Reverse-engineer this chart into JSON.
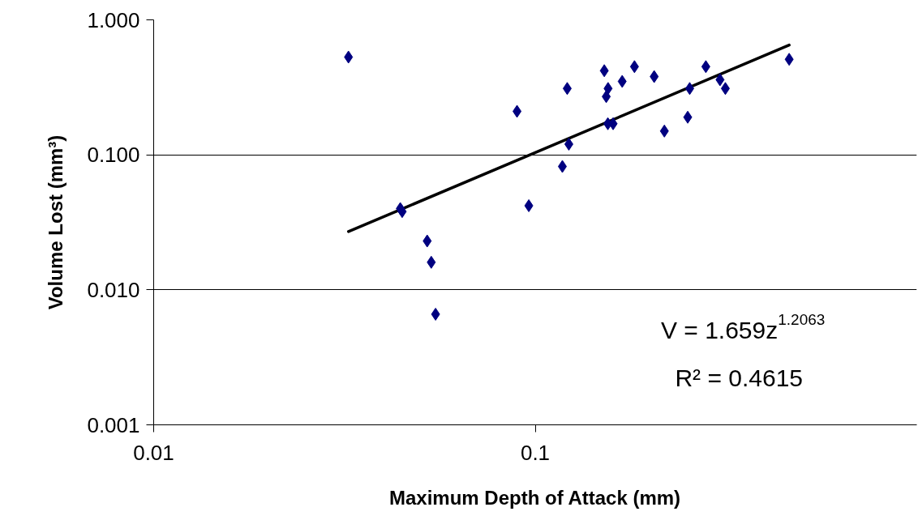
{
  "chart_data": {
    "type": "scatter",
    "xlabel": "Maximum Depth of Attack (mm)",
    "ylabel": "Volume Lost (mm³)",
    "log": "xy",
    "grid": "y",
    "marker": "diamond",
    "xlim": [
      0.01,
      1
    ],
    "xticks": [
      {
        "value": 0.01,
        "label": "0.01"
      },
      {
        "value": 0.1,
        "label": "0.1"
      }
    ],
    "ylim": [
      0.001,
      1
    ],
    "yticks": [
      {
        "value": 0.001,
        "label": "0.001"
      },
      {
        "value": 0.01,
        "label": "0.010"
      },
      {
        "value": 0.1,
        "label": "0.100"
      },
      {
        "value": 1,
        "label": "1.000"
      }
    ],
    "series": [
      {
        "color": "#000080",
        "x": [
          0.0324,
          0.0443,
          0.0448,
          0.0521,
          0.0534,
          0.0548,
          0.0896,
          0.0962,
          0.1178,
          0.1225,
          0.1213,
          0.1517,
          0.1552,
          0.1535,
          0.155,
          0.16,
          0.169,
          0.182,
          0.205,
          0.218,
          0.251,
          0.254,
          0.28,
          0.305,
          0.315,
          0.463
        ],
        "values": [
          0.53,
          0.04,
          0.038,
          0.023,
          0.016,
          0.0066,
          0.21,
          0.042,
          0.082,
          0.12,
          0.31,
          0.42,
          0.31,
          0.27,
          0.17,
          0.17,
          0.35,
          0.45,
          0.38,
          0.15,
          0.19,
          0.31,
          0.45,
          0.36,
          0.31,
          0.51
        ]
      },
      {
        "type": "line",
        "color": "#000000",
        "marker": "none",
        "x": [
          0.0324,
          0.463
        ],
        "values": [
          0.027,
          0.65
        ]
      }
    ],
    "annotations": [
      "V = 1.659z$^{1.2063}$",
      "R² = 0.4615"
    ]
  }
}
